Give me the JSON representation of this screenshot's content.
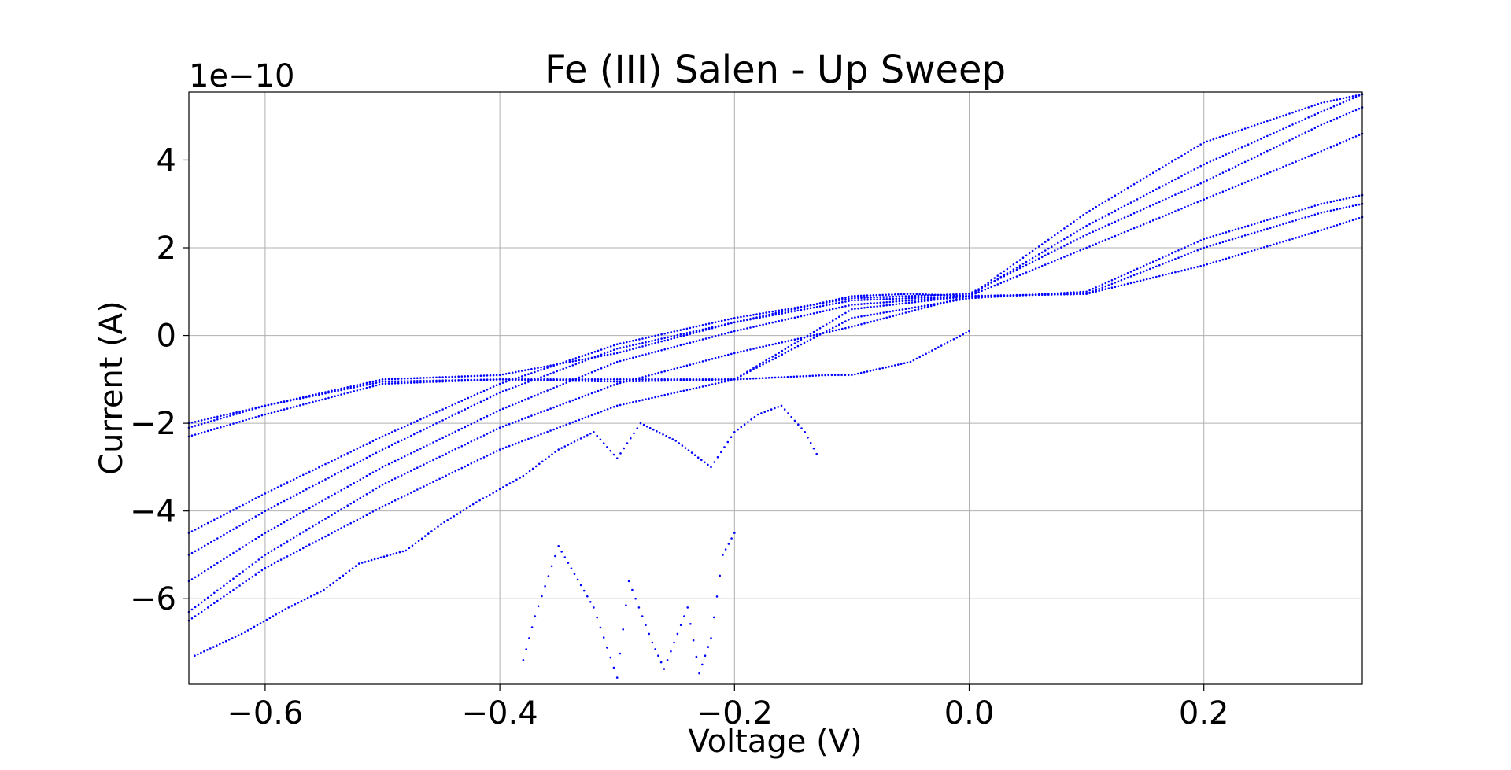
{
  "chart_data": {
    "type": "scatter",
    "title": "Fe (III) Salen -  Up Sweep",
    "xlabel": "Voltage (V)",
    "ylabel": "Current (A)",
    "y_offset_label": "1e−10",
    "y_scale": 1e-10,
    "xlim": [
      -0.665,
      0.335
    ],
    "ylim": [
      -7.95,
      5.55
    ],
    "x_ticks": [
      -0.6,
      -0.4,
      -0.2,
      0.0,
      0.2
    ],
    "x_tick_labels": [
      "−0.6",
      "−0.4",
      "−0.2",
      "0.0",
      "0.2"
    ],
    "y_ticks": [
      -6,
      -4,
      -2,
      0,
      2,
      4
    ],
    "y_tick_labels": [
      "−6",
      "−4",
      "−2",
      "0",
      "2",
      "4"
    ],
    "grid": true,
    "legend": false,
    "marker_color": "#0000ff",
    "series": [
      {
        "x": [
          -0.665,
          -0.6,
          -0.5,
          -0.4,
          -0.3,
          -0.2,
          -0.1,
          0.0,
          0.1,
          0.2,
          0.3,
          0.335
        ],
        "y": [
          -2.1,
          -1.6,
          -1.05,
          -1.0,
          -1.0,
          -1.0,
          0.6,
          0.9,
          0.95,
          2.0,
          2.8,
          3.0
        ]
      },
      {
        "x": [
          -0.665,
          -0.6,
          -0.5,
          -0.4,
          -0.3,
          -0.2,
          -0.1,
          0.0,
          0.1,
          0.2,
          0.3,
          0.335
        ],
        "y": [
          -2.3,
          -1.8,
          -1.1,
          -1.0,
          -1.05,
          -1.0,
          0.4,
          0.85,
          1.0,
          2.2,
          3.0,
          3.2
        ]
      },
      {
        "x": [
          -0.665,
          -0.6,
          -0.5,
          -0.4,
          -0.3,
          -0.2,
          -0.1,
          -0.05,
          0.0,
          0.1,
          0.2,
          0.3,
          0.335
        ],
        "y": [
          -2.0,
          -1.6,
          -1.0,
          -0.9,
          -0.4,
          0.3,
          0.9,
          0.95,
          0.9,
          0.95,
          1.6,
          2.4,
          2.7
        ]
      },
      {
        "x": [
          -0.665,
          -0.6,
          -0.5,
          -0.4,
          -0.3,
          -0.2,
          -0.1,
          0.0,
          0.1,
          0.2,
          0.3,
          0.335
        ],
        "y": [
          -4.5,
          -3.6,
          -2.3,
          -1.1,
          -0.2,
          0.4,
          0.85,
          0.95,
          2.3,
          3.5,
          4.8,
          5.2
        ]
      },
      {
        "x": [
          -0.665,
          -0.6,
          -0.5,
          -0.4,
          -0.3,
          -0.2,
          -0.1,
          0.0,
          0.1,
          0.2,
          0.3,
          0.335
        ],
        "y": [
          -5.0,
          -4.0,
          -2.6,
          -1.3,
          -0.3,
          0.3,
          0.8,
          0.9,
          2.5,
          3.9,
          5.1,
          5.5
        ]
      },
      {
        "x": [
          -0.665,
          -0.6,
          -0.5,
          -0.4,
          -0.3,
          -0.2,
          -0.1,
          0.0,
          0.1,
          0.2,
          0.3,
          0.335
        ],
        "y": [
          -5.6,
          -4.5,
          -3.0,
          -1.7,
          -0.6,
          0.1,
          0.7,
          0.9,
          2.8,
          4.4,
          5.3,
          5.5
        ]
      },
      {
        "x": [
          -0.665,
          -0.6,
          -0.5,
          -0.4,
          -0.3,
          -0.2,
          -0.1,
          0.0,
          0.1,
          0.2,
          0.3,
          0.335
        ],
        "y": [
          -6.3,
          -5.0,
          -3.4,
          -2.1,
          -1.1,
          -0.4,
          0.2,
          0.9,
          2.0,
          3.1,
          4.2,
          4.6
        ]
      },
      {
        "x": [
          -0.665,
          -0.6,
          -0.5,
          -0.4,
          -0.3,
          -0.2,
          -0.12,
          -0.1,
          -0.05,
          0.0
        ],
        "y": [
          -6.5,
          -5.3,
          -3.9,
          -2.6,
          -1.6,
          -1.0,
          -0.9,
          -0.9,
          -0.6,
          0.1
        ]
      },
      {
        "x": [
          -0.66,
          -0.62,
          -0.58,
          -0.55,
          -0.52,
          -0.48,
          -0.45,
          -0.42,
          -0.4,
          -0.38,
          -0.35,
          -0.32,
          -0.3,
          -0.28,
          -0.25,
          -0.22,
          -0.2,
          -0.18,
          -0.16,
          -0.14,
          -0.13
        ],
        "y": [
          -7.3,
          -6.8,
          -6.2,
          -5.8,
          -5.2,
          -4.9,
          -4.3,
          -3.8,
          -3.5,
          -3.2,
          -2.6,
          -2.2,
          -2.8,
          -2.0,
          -2.4,
          -3.0,
          -2.2,
          -1.8,
          -1.6,
          -2.2,
          -2.7
        ]
      },
      {
        "x": [
          -0.38,
          -0.37,
          -0.35,
          -0.32,
          -0.3,
          -0.29,
          -0.27,
          -0.26,
          -0.24,
          -0.23,
          -0.22,
          -0.21,
          -0.2
        ],
        "y": [
          -7.4,
          -6.4,
          -4.8,
          -6.2,
          -7.8,
          -5.6,
          -7.0,
          -7.6,
          -6.2,
          -7.7,
          -6.9,
          -5.0,
          -4.5
        ]
      }
    ]
  }
}
